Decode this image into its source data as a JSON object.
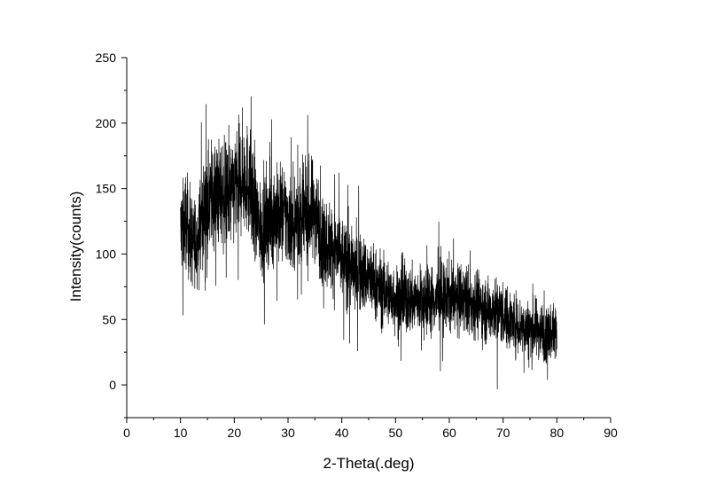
{
  "chart_data": {
    "type": "line",
    "xlabel": "2-Theta(.deg)",
    "ylabel": "Intensity(counts)",
    "xlim": [
      0,
      90
    ],
    "ylim": [
      -25,
      250
    ],
    "x_ticks": [
      0,
      10,
      20,
      30,
      40,
      50,
      60,
      70,
      80,
      90
    ],
    "y_ticks": [
      0,
      50,
      100,
      150,
      200,
      250
    ],
    "grid": false,
    "legend": "none",
    "line_color": "#000000",
    "series": [
      {
        "x": [
          10,
          11,
          12,
          13,
          14,
          15,
          16,
          17,
          18,
          19,
          20,
          21,
          22,
          23,
          24,
          25,
          26,
          27,
          28,
          29,
          30,
          31,
          32,
          33,
          34,
          35,
          36,
          37,
          38,
          39,
          40,
          41,
          42,
          43,
          44,
          45,
          46,
          47,
          48,
          49,
          50,
          51,
          52,
          53,
          54,
          55,
          56,
          57,
          58,
          59,
          60,
          61,
          62,
          63,
          64,
          65,
          66,
          67,
          68,
          69,
          70,
          71,
          72,
          73,
          74,
          75,
          76,
          77,
          78,
          79,
          80
        ],
        "values": [
          118,
          125,
          110,
          108,
          128,
          138,
          148,
          146,
          145,
          142,
          150,
          156,
          162,
          150,
          128,
          118,
          122,
          130,
          128,
          132,
          126,
          124,
          128,
          126,
          132,
          134,
          118,
          108,
          106,
          102,
          96,
          92,
          88,
          86,
          84,
          82,
          78,
          74,
          72,
          68,
          66,
          64,
          66,
          64,
          66,
          64,
          66,
          65,
          66,
          66,
          68,
          66,
          64,
          66,
          62,
          64,
          60,
          56,
          58,
          56,
          54,
          50,
          48,
          46,
          44,
          42,
          44,
          42,
          40,
          42,
          40
        ]
      }
    ]
  }
}
